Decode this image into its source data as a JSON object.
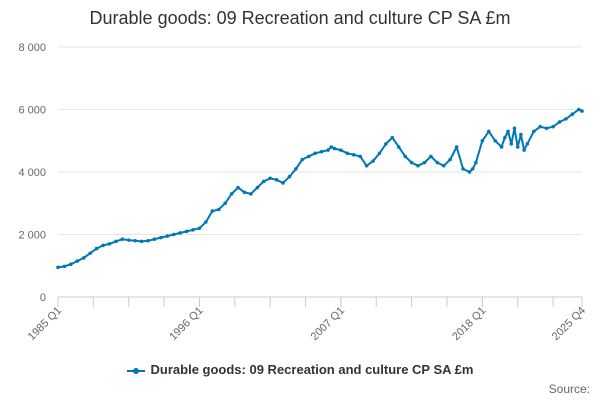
{
  "chart_data": {
    "type": "line",
    "title": "Durable goods: 09 Recreation and culture CP SA £m",
    "xlabel": "",
    "ylabel": "",
    "ylim": [
      0,
      8000
    ],
    "y_ticks": [
      0,
      2000,
      4000,
      6000,
      8000
    ],
    "y_tick_labels": [
      "0",
      "2 000",
      "4 000",
      "6 000",
      "8 000"
    ],
    "x_tick_labels": [
      "1985 Q1",
      "1996 Q1",
      "2007 Q1",
      "2018 Q1",
      "2025 Q4"
    ],
    "x_tick_values": [
      1985.0,
      1996.0,
      2007.0,
      2018.0,
      2025.75
    ],
    "x_range": [
      1985.0,
      2025.75
    ],
    "grid": true,
    "legend_position": "bottom",
    "series": [
      {
        "name": "Durable goods: 09 Recreation and culture CP SA £m",
        "color": "#0077b6",
        "x": [
          1985.0,
          1985.5,
          1986.0,
          1986.5,
          1987.0,
          1987.5,
          1988.0,
          1988.5,
          1989.0,
          1989.5,
          1990.0,
          1990.5,
          1991.0,
          1991.5,
          1992.0,
          1992.5,
          1993.0,
          1993.5,
          1994.0,
          1994.5,
          1995.0,
          1995.5,
          1996.0,
          1996.5,
          1997.0,
          1997.5,
          1998.0,
          1998.5,
          1999.0,
          1999.5,
          2000.0,
          2000.5,
          2001.0,
          2001.5,
          2002.0,
          2002.5,
          2003.0,
          2003.5,
          2004.0,
          2004.5,
          2005.0,
          2005.5,
          2006.0,
          2006.25,
          2006.5,
          2007.0,
          2007.5,
          2008.0,
          2008.5,
          2009.0,
          2009.5,
          2010.0,
          2010.5,
          2011.0,
          2011.5,
          2012.0,
          2012.5,
          2013.0,
          2013.5,
          2014.0,
          2014.5,
          2015.0,
          2015.5,
          2016.0,
          2016.5,
          2017.0,
          2017.25,
          2017.5,
          2018.0,
          2018.5,
          2019.0,
          2019.5,
          2019.75,
          2020.0,
          2020.25,
          2020.5,
          2020.75,
          2021.0,
          2021.25,
          2021.5,
          2022.0,
          2022.5,
          2023.0,
          2023.5,
          2024.0,
          2024.5,
          2025.0,
          2025.5,
          2025.75
        ],
        "y": [
          950,
          980,
          1050,
          1150,
          1250,
          1400,
          1550,
          1650,
          1700,
          1780,
          1850,
          1820,
          1800,
          1780,
          1800,
          1850,
          1900,
          1950,
          2000,
          2050,
          2100,
          2150,
          2200,
          2400,
          2750,
          2800,
          3000,
          3300,
          3500,
          3350,
          3300,
          3500,
          3700,
          3800,
          3750,
          3650,
          3850,
          4100,
          4400,
          4500,
          4600,
          4650,
          4700,
          4800,
          4750,
          4700,
          4600,
          4550,
          4500,
          4200,
          4350,
          4600,
          4900,
          5100,
          4800,
          4500,
          4300,
          4200,
          4300,
          4500,
          4300,
          4200,
          4400,
          4800,
          4100,
          4000,
          4100,
          4300,
          5000,
          5300,
          5000,
          4800,
          5100,
          5300,
          4900,
          5400,
          4800,
          5200,
          4700,
          4900,
          5300,
          5450,
          5400,
          5450,
          5600,
          5700,
          5850,
          6000,
          5950
        ]
      }
    ],
    "source_label": "Source:"
  }
}
